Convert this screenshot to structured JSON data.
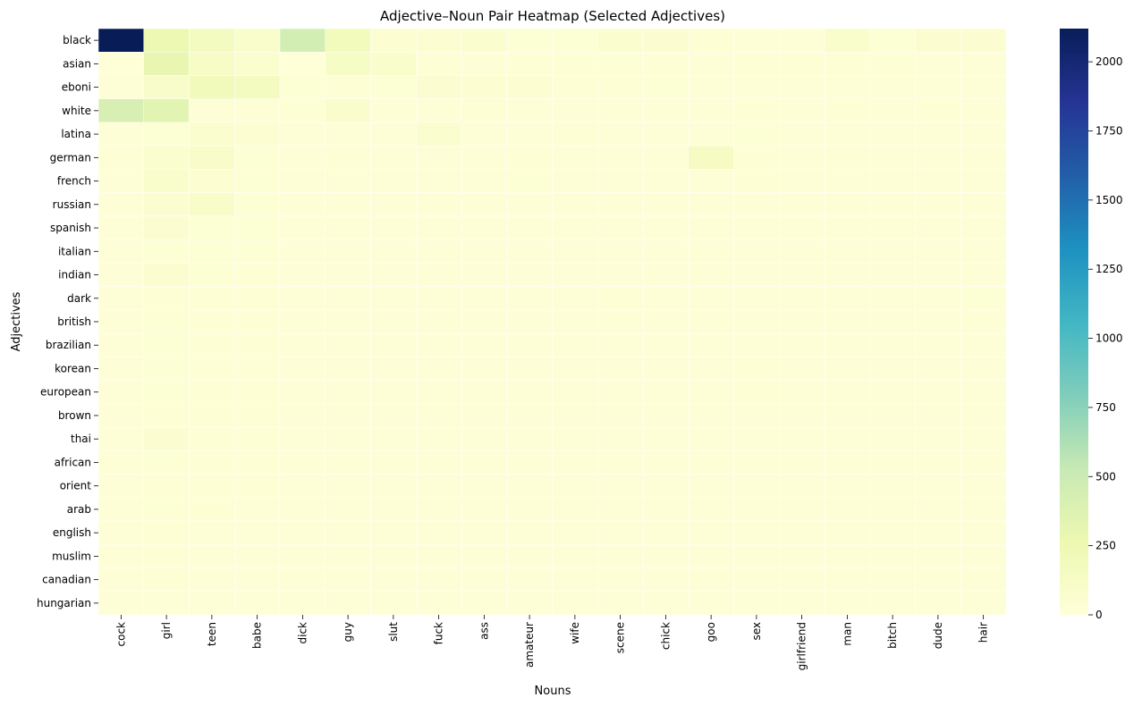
{
  "chart_data": {
    "type": "heatmap",
    "title": "Adjective–Noun Pair Heatmap (Selected Adjectives)",
    "xlabel": "Nouns",
    "ylabel": "Adjectives",
    "x_categories": [
      "cock",
      "girl",
      "teen",
      "babe",
      "dick",
      "guy",
      "slut",
      "fuck",
      "ass",
      "amateur",
      "wife",
      "scene",
      "chick",
      "goo",
      "sex",
      "girlfriend",
      "man",
      "bitch",
      "dude",
      "hair"
    ],
    "y_categories": [
      "black",
      "asian",
      "eboni",
      "white",
      "latina",
      "german",
      "french",
      "russian",
      "spanish",
      "italian",
      "indian",
      "dark",
      "british",
      "brazilian",
      "korean",
      "european",
      "brown",
      "thai",
      "african",
      "orient",
      "arab",
      "english",
      "muslim",
      "canadian",
      "hungarian"
    ],
    "values": [
      [
        2120,
        260,
        160,
        90,
        450,
        190,
        50,
        50,
        70,
        40,
        40,
        80,
        60,
        30,
        20,
        20,
        90,
        40,
        60,
        60
      ],
      [
        10,
        300,
        120,
        80,
        10,
        130,
        90,
        40,
        20,
        30,
        40,
        40,
        30,
        20,
        30,
        40,
        30,
        40,
        20,
        20
      ],
      [
        20,
        100,
        200,
        160,
        40,
        30,
        40,
        60,
        50,
        50,
        30,
        30,
        40,
        20,
        20,
        20,
        20,
        20,
        20,
        20
      ],
      [
        420,
        340,
        20,
        20,
        40,
        90,
        20,
        20,
        30,
        20,
        20,
        20,
        20,
        20,
        30,
        20,
        30,
        20,
        30,
        20
      ],
      [
        20,
        40,
        80,
        50,
        20,
        20,
        20,
        70,
        20,
        20,
        30,
        20,
        20,
        20,
        40,
        20,
        20,
        20,
        20,
        20
      ],
      [
        30,
        70,
        110,
        40,
        20,
        30,
        20,
        20,
        20,
        30,
        20,
        20,
        20,
        150,
        30,
        20,
        30,
        20,
        20,
        20
      ],
      [
        20,
        90,
        50,
        40,
        20,
        20,
        20,
        20,
        20,
        40,
        20,
        20,
        20,
        20,
        30,
        20,
        20,
        20,
        20,
        20
      ],
      [
        20,
        60,
        110,
        40,
        20,
        20,
        20,
        20,
        20,
        20,
        20,
        20,
        20,
        20,
        20,
        20,
        20,
        20,
        20,
        20
      ],
      [
        20,
        60,
        40,
        40,
        20,
        20,
        20,
        20,
        20,
        20,
        20,
        20,
        20,
        20,
        20,
        20,
        20,
        20,
        20,
        20
      ],
      [
        20,
        40,
        40,
        40,
        20,
        20,
        20,
        20,
        20,
        20,
        20,
        20,
        20,
        20,
        20,
        20,
        20,
        20,
        20,
        20
      ],
      [
        20,
        60,
        40,
        30,
        20,
        20,
        20,
        20,
        20,
        20,
        20,
        20,
        20,
        20,
        20,
        20,
        20,
        20,
        20,
        20
      ],
      [
        20,
        30,
        30,
        30,
        20,
        20,
        20,
        20,
        20,
        20,
        20,
        30,
        20,
        20,
        20,
        20,
        20,
        20,
        20,
        40
      ],
      [
        20,
        40,
        30,
        30,
        20,
        20,
        20,
        20,
        20,
        20,
        20,
        20,
        20,
        20,
        20,
        20,
        20,
        20,
        20,
        20
      ],
      [
        20,
        40,
        30,
        30,
        20,
        20,
        20,
        20,
        20,
        20,
        20,
        20,
        20,
        20,
        20,
        20,
        20,
        20,
        20,
        20
      ],
      [
        20,
        40,
        30,
        30,
        20,
        20,
        20,
        20,
        20,
        20,
        20,
        20,
        20,
        20,
        30,
        20,
        20,
        20,
        20,
        20
      ],
      [
        20,
        40,
        30,
        30,
        20,
        20,
        20,
        20,
        20,
        20,
        20,
        20,
        20,
        20,
        30,
        20,
        20,
        20,
        20,
        20
      ],
      [
        20,
        30,
        30,
        30,
        20,
        20,
        20,
        20,
        20,
        20,
        20,
        20,
        20,
        20,
        20,
        20,
        20,
        20,
        20,
        20
      ],
      [
        20,
        60,
        30,
        30,
        20,
        20,
        20,
        20,
        20,
        20,
        20,
        20,
        20,
        20,
        20,
        20,
        20,
        20,
        20,
        20
      ],
      [
        20,
        40,
        30,
        30,
        20,
        20,
        20,
        20,
        20,
        20,
        20,
        20,
        20,
        20,
        20,
        20,
        20,
        20,
        20,
        20
      ],
      [
        20,
        30,
        30,
        30,
        20,
        20,
        20,
        20,
        20,
        20,
        20,
        20,
        20,
        20,
        20,
        20,
        20,
        20,
        20,
        20
      ],
      [
        20,
        40,
        30,
        20,
        20,
        20,
        20,
        20,
        20,
        20,
        20,
        20,
        20,
        20,
        20,
        20,
        20,
        20,
        20,
        20
      ],
      [
        20,
        30,
        20,
        20,
        20,
        20,
        20,
        20,
        20,
        20,
        20,
        20,
        20,
        20,
        20,
        20,
        20,
        20,
        20,
        20
      ],
      [
        20,
        30,
        20,
        20,
        20,
        20,
        20,
        20,
        20,
        20,
        20,
        20,
        20,
        20,
        20,
        20,
        20,
        20,
        20,
        20
      ],
      [
        20,
        30,
        20,
        20,
        20,
        20,
        20,
        20,
        20,
        20,
        20,
        20,
        20,
        20,
        20,
        20,
        20,
        20,
        20,
        20
      ],
      [
        20,
        20,
        20,
        20,
        20,
        20,
        20,
        20,
        20,
        20,
        20,
        20,
        20,
        20,
        20,
        20,
        20,
        20,
        20,
        20
      ]
    ],
    "colormap": "YlGnBu",
    "colormap_stops": [
      "#ffffd9",
      "#edf8b1",
      "#c7e9b4",
      "#7fcdbb",
      "#41b6c4",
      "#1d91c0",
      "#225ea8",
      "#253494",
      "#081d58"
    ],
    "vmin": 0,
    "vmax": 2120,
    "colorbar_ticks": [
      0,
      250,
      500,
      750,
      1000,
      1250,
      1500,
      1750,
      2000
    ],
    "grid": false,
    "cell_border_color": "#ffffff"
  }
}
